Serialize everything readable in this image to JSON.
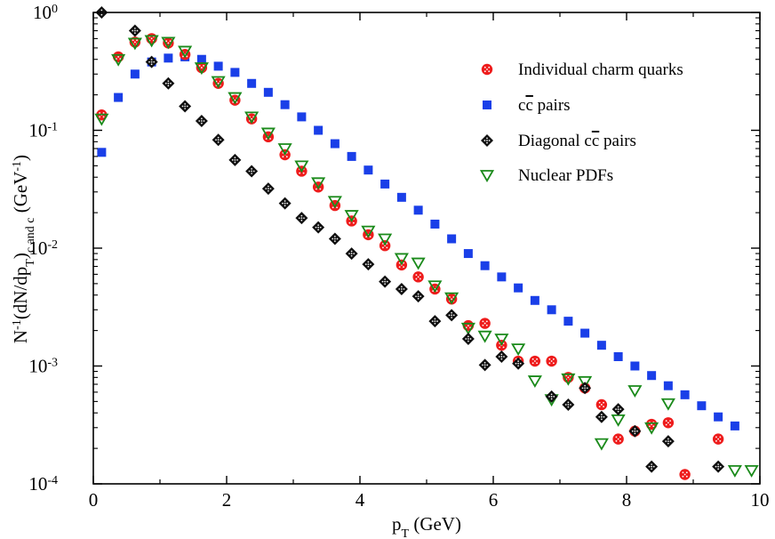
{
  "chart_data": {
    "type": "scatter",
    "title": "",
    "xlabel": {
      "main": "p",
      "sub": "T",
      "rest": " (GeV)"
    },
    "ylabel": {
      "t1": "N",
      "s1": "-1",
      "t2": "(dN/dp",
      "s2": "T",
      "t3": ")",
      "s3": "c and c",
      "t4": " (GeV",
      "s4": "-1",
      "t5": ")"
    },
    "x_axis": {
      "min": 0,
      "max": 10,
      "ticks": [
        0,
        2,
        4,
        6,
        8,
        10
      ],
      "tick_labels": [
        "0",
        "2",
        "4",
        "6",
        "8",
        "10"
      ]
    },
    "y_axis": {
      "scale": "log",
      "min": 0.0001,
      "max": 1,
      "ticks": [
        {
          "value": 1,
          "base": "10",
          "exp": "0"
        },
        {
          "value": 0.1,
          "base": "10",
          "exp": "-1"
        },
        {
          "value": 0.01,
          "base": "10",
          "exp": "-2"
        },
        {
          "value": 0.001,
          "base": "10",
          "exp": "-3"
        },
        {
          "value": 0.0001,
          "base": "10",
          "exp": "-4"
        }
      ]
    },
    "legend": {
      "position": "top-right",
      "entries": [
        {
          "series": 0,
          "label": "Individual charm quarks"
        },
        {
          "series": 1,
          "label_pre": "c",
          "label_over": "c",
          "label_post": " pairs"
        },
        {
          "series": 2,
          "label_pre": "Diagonal c",
          "label_over": "c",
          "label_post": " pairs"
        },
        {
          "series": 3,
          "label": "Nuclear PDFs"
        }
      ]
    },
    "series": [
      {
        "name": "Individual charm quarks",
        "marker": "circle",
        "color": "#ee1c1c",
        "x": [
          0.125,
          0.375,
          0.625,
          0.875,
          1.125,
          1.375,
          1.625,
          1.875,
          2.125,
          2.375,
          2.625,
          2.875,
          3.125,
          3.375,
          3.625,
          3.875,
          4.125,
          4.375,
          4.625,
          4.875,
          5.125,
          5.375,
          5.625,
          5.875,
          6.125,
          6.375,
          6.625,
          6.875,
          7.125,
          7.375,
          7.625,
          7.875,
          8.125,
          8.375,
          8.625,
          8.875,
          9.375
        ],
        "y": [
          0.135,
          0.42,
          0.56,
          0.6,
          0.55,
          0.44,
          0.34,
          0.25,
          0.18,
          0.125,
          0.088,
          0.062,
          0.045,
          0.033,
          0.023,
          0.017,
          0.013,
          0.0105,
          0.0072,
          0.0057,
          0.0045,
          0.0037,
          0.0022,
          0.0023,
          0.0015,
          0.0011,
          0.0011,
          0.0011,
          0.0008,
          0.00065,
          0.00047,
          0.00024,
          0.00028,
          0.00032,
          0.00033,
          0.00012,
          0.00024
        ]
      },
      {
        "name": "cc pairs",
        "marker": "square",
        "color": "#1a3fe8",
        "x": [
          0.125,
          0.375,
          0.625,
          0.875,
          1.125,
          1.375,
          1.625,
          1.875,
          2.125,
          2.375,
          2.625,
          2.875,
          3.125,
          3.375,
          3.625,
          3.875,
          4.125,
          4.375,
          4.625,
          4.875,
          5.125,
          5.375,
          5.625,
          5.875,
          6.125,
          6.375,
          6.625,
          6.875,
          7.125,
          7.375,
          7.625,
          7.875,
          8.125,
          8.375,
          8.625,
          8.875,
          9.125,
          9.375,
          9.625
        ],
        "y": [
          0.065,
          0.19,
          0.3,
          0.38,
          0.41,
          0.42,
          0.4,
          0.35,
          0.31,
          0.25,
          0.21,
          0.165,
          0.13,
          0.1,
          0.077,
          0.06,
          0.046,
          0.035,
          0.027,
          0.021,
          0.016,
          0.012,
          0.009,
          0.0071,
          0.0057,
          0.0046,
          0.0036,
          0.003,
          0.0024,
          0.0019,
          0.0015,
          0.0012,
          0.001,
          0.00083,
          0.00068,
          0.00057,
          0.00046,
          0.00037,
          0.00031
        ]
      },
      {
        "name": "Diagonal cc pairs",
        "marker": "diamond",
        "color": "#111111",
        "x": [
          0.125,
          0.625,
          0.875,
          1.125,
          1.375,
          1.625,
          1.875,
          2.125,
          2.375,
          2.625,
          2.875,
          3.125,
          3.375,
          3.625,
          3.875,
          4.125,
          4.375,
          4.625,
          4.875,
          5.125,
          5.375,
          5.625,
          5.875,
          6.125,
          6.375,
          6.875,
          7.125,
          7.375,
          7.625,
          7.875,
          8.125,
          8.375,
          8.625,
          9.375
        ],
        "y": [
          1.0,
          0.7,
          0.38,
          0.25,
          0.16,
          0.12,
          0.083,
          0.056,
          0.045,
          0.032,
          0.024,
          0.018,
          0.015,
          0.012,
          0.009,
          0.0073,
          0.0052,
          0.0045,
          0.0039,
          0.0024,
          0.0027,
          0.0017,
          0.00102,
          0.0012,
          0.00105,
          0.00055,
          0.00047,
          0.00065,
          0.00037,
          0.00043,
          0.00028,
          0.00014,
          0.00023,
          0.00014
        ]
      },
      {
        "name": "Nuclear PDFs",
        "marker": "triangle-down",
        "color": "#1a8a1a",
        "x": [
          0.125,
          0.375,
          0.625,
          0.875,
          1.125,
          1.375,
          1.625,
          1.875,
          2.125,
          2.375,
          2.625,
          2.875,
          3.125,
          3.375,
          3.625,
          3.875,
          4.125,
          4.375,
          4.625,
          4.875,
          5.125,
          5.375,
          5.625,
          5.875,
          6.125,
          6.375,
          6.625,
          6.875,
          7.125,
          7.375,
          7.625,
          7.875,
          8.125,
          8.375,
          8.625,
          9.625,
          9.875
        ],
        "y": [
          0.125,
          0.4,
          0.55,
          0.58,
          0.56,
          0.47,
          0.34,
          0.26,
          0.19,
          0.13,
          0.095,
          0.07,
          0.05,
          0.036,
          0.025,
          0.019,
          0.014,
          0.012,
          0.0082,
          0.0075,
          0.0048,
          0.0038,
          0.0021,
          0.0018,
          0.0017,
          0.0014,
          0.00075,
          0.00052,
          0.00078,
          0.00074,
          0.00022,
          0.00035,
          0.00062,
          0.0003,
          0.00048,
          0.00013,
          0.00013
        ]
      }
    ]
  }
}
